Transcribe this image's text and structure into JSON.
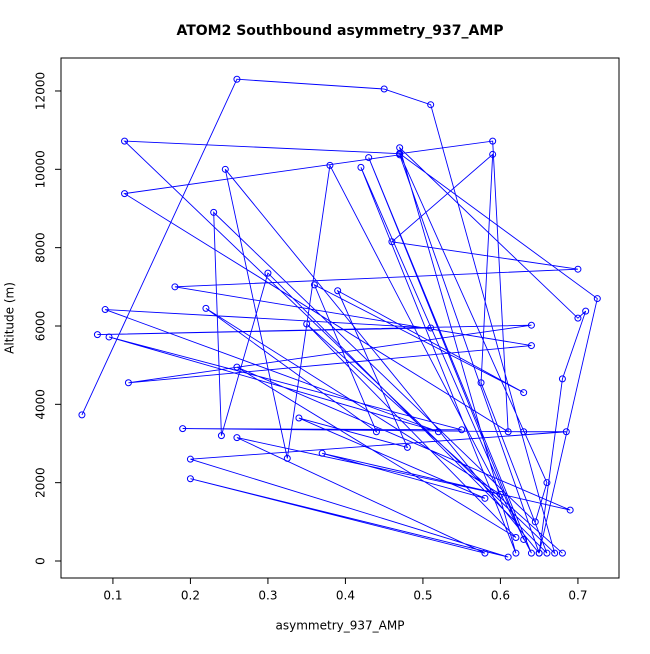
{
  "chart_data": {
    "type": "line",
    "title": "ATOM2 Southbound asymmetry_937_AMP",
    "x_label": "asymmetry_937_AMP",
    "y_label": "Altitude (m)",
    "xlim": [
      0.033,
      0.753
    ],
    "ylim": [
      -434,
      12842
    ],
    "xticks": [
      0.1,
      0.2,
      0.3,
      0.4,
      0.5,
      0.6,
      0.7
    ],
    "yticks": [
      0,
      2000,
      4000,
      6000,
      8000,
      10000,
      12000
    ],
    "markers": true,
    "series": [
      {
        "name": "asymmetry_937_AMP",
        "color": "#0000ff",
        "x": [
          0.06,
          0.26,
          0.45,
          0.51,
          0.67,
          0.115,
          0.47,
          0.59,
          0.61,
          0.115,
          0.47,
          0.65,
          0.245,
          0.325,
          0.38,
          0.64,
          0.43,
          0.63,
          0.42,
          0.62,
          0.47,
          0.7,
          0.71,
          0.68,
          0.65,
          0.725,
          0.47,
          0.66,
          0.645,
          0.23,
          0.24,
          0.3,
          0.66,
          0.575,
          0.59,
          0.46,
          0.7,
          0.18,
          0.64,
          0.12,
          0.64,
          0.08,
          0.51,
          0.09,
          0.52,
          0.095,
          0.55,
          0.19,
          0.63,
          0.685,
          0.2,
          0.61,
          0.2,
          0.58,
          0.26,
          0.6,
          0.22,
          0.44,
          0.36,
          0.63,
          0.39,
          0.48,
          0.34,
          0.58,
          0.37,
          0.69,
          0.26,
          0.62,
          0.35,
          0.68
        ],
        "values": [
          3730,
          12300,
          12050,
          11650,
          200,
          10720,
          10400,
          10720,
          3300,
          9380,
          10370,
          200,
          10000,
          2620,
          10100,
          200,
          10300,
          550,
          10050,
          200,
          10550,
          6200,
          6380,
          4650,
          200,
          6700,
          10400,
          2000,
          1000,
          8900,
          3200,
          7350,
          200,
          4550,
          10380,
          8150,
          7450,
          7000,
          5500,
          4550,
          6020,
          5780,
          5950,
          6420,
          3300,
          5720,
          3350,
          3380,
          3300,
          3300,
          2600,
          100,
          2100,
          200,
          3150,
          1700,
          6450,
          3300,
          7050,
          4300,
          6900,
          2900,
          3650,
          1600,
          2750,
          1300,
          4950,
          600,
          6050,
          200
        ]
      }
    ]
  }
}
